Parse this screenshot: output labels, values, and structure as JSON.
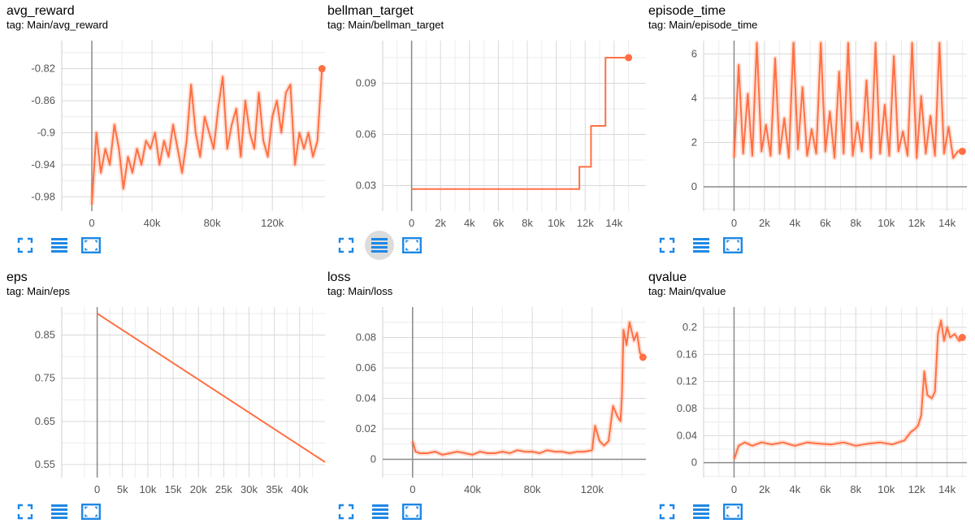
{
  "accent_color": "#ff7043",
  "chart_data": [
    {
      "id": "avg_reward",
      "type": "line",
      "title": "avg_reward",
      "subtitle": "tag: Main/avg_reward",
      "x_ticks": [
        0,
        40000,
        80000,
        120000
      ],
      "x_tick_labels": [
        "0",
        "40k",
        "80k",
        "120k"
      ],
      "y_ticks": [
        -0.98,
        -0.94,
        -0.9,
        -0.86,
        -0.82
      ],
      "y_tick_labels": [
        "-0.98",
        "-0.94",
        "-0.9",
        "-0.86",
        "-0.82"
      ],
      "xlim": [
        -20000,
        155000
      ],
      "ylim": [
        -0.998,
        -0.785
      ],
      "grid": true,
      "x": [
        0,
        3000,
        6000,
        9000,
        12000,
        15000,
        18000,
        21000,
        24000,
        27000,
        30000,
        33000,
        36000,
        39000,
        42000,
        45000,
        48000,
        51000,
        54000,
        57000,
        60000,
        63000,
        66000,
        69000,
        72000,
        75000,
        78000,
        81000,
        84000,
        87000,
        90000,
        93000,
        96000,
        99000,
        102000,
        105000,
        108000,
        111000,
        114000,
        117000,
        120000,
        123000,
        126000,
        129000,
        132000,
        135000,
        138000,
        141000,
        144000,
        147000,
        150000,
        153000
      ],
      "y": [
        -0.99,
        -0.9,
        -0.95,
        -0.92,
        -0.94,
        -0.89,
        -0.92,
        -0.97,
        -0.93,
        -0.95,
        -0.92,
        -0.94,
        -0.91,
        -0.92,
        -0.9,
        -0.94,
        -0.91,
        -0.93,
        -0.89,
        -0.92,
        -0.95,
        -0.91,
        -0.84,
        -0.9,
        -0.93,
        -0.88,
        -0.9,
        -0.92,
        -0.87,
        -0.83,
        -0.92,
        -0.89,
        -0.87,
        -0.93,
        -0.86,
        -0.9,
        -0.92,
        -0.85,
        -0.91,
        -0.93,
        -0.88,
        -0.86,
        -0.9,
        -0.85,
        -0.84,
        -0.94,
        -0.9,
        -0.92,
        -0.9,
        -0.93,
        -0.91,
        -0.82
      ],
      "marker_last": true
    },
    {
      "id": "bellman_target",
      "type": "line",
      "title": "bellman_target",
      "subtitle": "tag: Main/bellman_target",
      "x_ticks": [
        0,
        2000,
        4000,
        6000,
        8000,
        10000,
        12000,
        14000
      ],
      "x_tick_labels": [
        "0",
        "2k",
        "4k",
        "6k",
        "8k",
        "10k",
        "12k",
        "14k"
      ],
      "y_ticks": [
        0.03,
        0.06,
        0.09
      ],
      "y_tick_labels": [
        "0.03",
        "0.06",
        "0.09"
      ],
      "xlim": [
        -2000,
        16200
      ],
      "ylim": [
        0.015,
        0.115
      ],
      "grid": true,
      "x": [
        0,
        11600,
        11600,
        12400,
        12400,
        13400,
        13400,
        15000
      ],
      "y": [
        0.028,
        0.028,
        0.041,
        0.041,
        0.065,
        0.065,
        0.105,
        0.105
      ],
      "marker_last": true
    },
    {
      "id": "episode_time",
      "type": "line",
      "title": "episode_time",
      "subtitle": "tag: Main/episode_time",
      "x_ticks": [
        0,
        2000,
        4000,
        6000,
        8000,
        10000,
        12000,
        14000
      ],
      "x_tick_labels": [
        "0",
        "2k",
        "4k",
        "6k",
        "8k",
        "10k",
        "12k",
        "14k"
      ],
      "y_ticks": [
        0,
        2,
        4,
        6
      ],
      "y_tick_labels": [
        "0",
        "2",
        "4",
        "6"
      ],
      "xlim": [
        -2000,
        15300
      ],
      "ylim": [
        -1.1,
        6.6
      ],
      "grid": true,
      "x": [
        0,
        300,
        600,
        900,
        1200,
        1500,
        1800,
        2100,
        2400,
        2700,
        3000,
        3300,
        3600,
        3900,
        4200,
        4500,
        4800,
        5100,
        5400,
        5700,
        6000,
        6300,
        6600,
        6900,
        7200,
        7500,
        7800,
        8100,
        8400,
        8700,
        9000,
        9300,
        9600,
        9900,
        10200,
        10500,
        10800,
        11100,
        11400,
        11700,
        12000,
        12300,
        12600,
        12900,
        13200,
        13500,
        13800,
        14100,
        14400,
        14700,
        15000
      ],
      "y": [
        1.3,
        5.5,
        1.5,
        4.2,
        1.4,
        6.5,
        1.6,
        2.8,
        1.4,
        5.8,
        1.5,
        3.1,
        1.3,
        6.5,
        1.7,
        4.5,
        1.4,
        2.6,
        1.5,
        6.5,
        1.6,
        3.4,
        1.3,
        5.2,
        1.5,
        6.5,
        1.4,
        2.9,
        1.6,
        4.8,
        1.3,
        6.5,
        1.5,
        3.7,
        1.4,
        5.9,
        1.6,
        2.5,
        1.4,
        6.5,
        1.3,
        4.1,
        1.5,
        3.2,
        1.4,
        6.5,
        1.5,
        2.7,
        1.3,
        1.6,
        1.6
      ],
      "marker_last": true
    },
    {
      "id": "eps",
      "type": "line",
      "title": "eps",
      "subtitle": "tag: Main/eps",
      "x_ticks": [
        0,
        5000,
        10000,
        15000,
        20000,
        25000,
        30000,
        35000,
        40000
      ],
      "x_tick_labels": [
        "0",
        "5k",
        "10k",
        "15k",
        "20k",
        "25k",
        "30k",
        "35k",
        "40k"
      ],
      "y_ticks": [
        0.55,
        0.65,
        0.75,
        0.85
      ],
      "y_tick_labels": [
        "0.55",
        "0.65",
        "0.75",
        "0.85"
      ],
      "xlim": [
        -7000,
        45000
      ],
      "ylim": [
        0.52,
        0.915
      ],
      "grid": true,
      "x": [
        0,
        45000
      ],
      "y": [
        0.9,
        0.556
      ],
      "marker_last": false
    },
    {
      "id": "loss",
      "type": "line",
      "title": "loss",
      "subtitle": "tag: Main/loss",
      "x_ticks": [
        0,
        40000,
        80000,
        120000
      ],
      "x_tick_labels": [
        "0",
        "40k",
        "80k",
        "120k"
      ],
      "y_ticks": [
        0,
        0.02,
        0.04,
        0.06,
        0.08
      ],
      "y_tick_labels": [
        "0",
        "0.02",
        "0.04",
        "0.06",
        "0.08"
      ],
      "xlim": [
        -20000,
        156000
      ],
      "ylim": [
        -0.012,
        0.1
      ],
      "grid": true,
      "x": [
        0,
        2000,
        5000,
        10000,
        15000,
        20000,
        25000,
        30000,
        35000,
        40000,
        45000,
        50000,
        55000,
        60000,
        65000,
        70000,
        75000,
        80000,
        85000,
        90000,
        95000,
        100000,
        105000,
        110000,
        115000,
        120000,
        122000,
        125000,
        128000,
        131000,
        134000,
        137000,
        139000,
        140000,
        141000,
        143000,
        145000,
        148000,
        150000,
        152000,
        154000
      ],
      "y": [
        0.012,
        0.005,
        0.004,
        0.004,
        0.005,
        0.003,
        0.004,
        0.005,
        0.004,
        0.003,
        0.005,
        0.004,
        0.004,
        0.005,
        0.004,
        0.006,
        0.005,
        0.005,
        0.004,
        0.006,
        0.005,
        0.005,
        0.004,
        0.005,
        0.005,
        0.006,
        0.022,
        0.012,
        0.009,
        0.012,
        0.035,
        0.028,
        0.025,
        0.042,
        0.085,
        0.075,
        0.09,
        0.078,
        0.083,
        0.07,
        0.067
      ],
      "marker_last": true
    },
    {
      "id": "qvalue",
      "type": "line",
      "title": "qvalue",
      "subtitle": "tag: Main/qvalue",
      "x_ticks": [
        0,
        2000,
        4000,
        6000,
        8000,
        10000,
        12000,
        14000
      ],
      "x_tick_labels": [
        "0",
        "2k",
        "4k",
        "6k",
        "8k",
        "10k",
        "12k",
        "14k"
      ],
      "y_ticks": [
        0,
        0.04,
        0.08,
        0.12,
        0.16,
        0.2
      ],
      "y_tick_labels": [
        "0",
        "0.04",
        "0.08",
        "0.12",
        "0.16",
        "0.2"
      ],
      "xlim": [
        -2000,
        15300
      ],
      "ylim": [
        -0.022,
        0.23
      ],
      "grid": true,
      "x": [
        0,
        300,
        700,
        1200,
        1800,
        2500,
        3200,
        4000,
        4800,
        5600,
        6400,
        7200,
        8000,
        8800,
        9600,
        10400,
        11200,
        11600,
        11900,
        12100,
        12300,
        12500,
        12700,
        13000,
        13200,
        13400,
        13600,
        13800,
        14000,
        14200,
        14500,
        14800,
        15000
      ],
      "y": [
        0.005,
        0.025,
        0.03,
        0.025,
        0.03,
        0.027,
        0.03,
        0.025,
        0.03,
        0.028,
        0.027,
        0.03,
        0.025,
        0.028,
        0.03,
        0.027,
        0.033,
        0.045,
        0.05,
        0.055,
        0.07,
        0.135,
        0.1,
        0.095,
        0.105,
        0.19,
        0.21,
        0.18,
        0.2,
        0.185,
        0.19,
        0.18,
        0.185
      ],
      "marker_last": true
    }
  ]
}
